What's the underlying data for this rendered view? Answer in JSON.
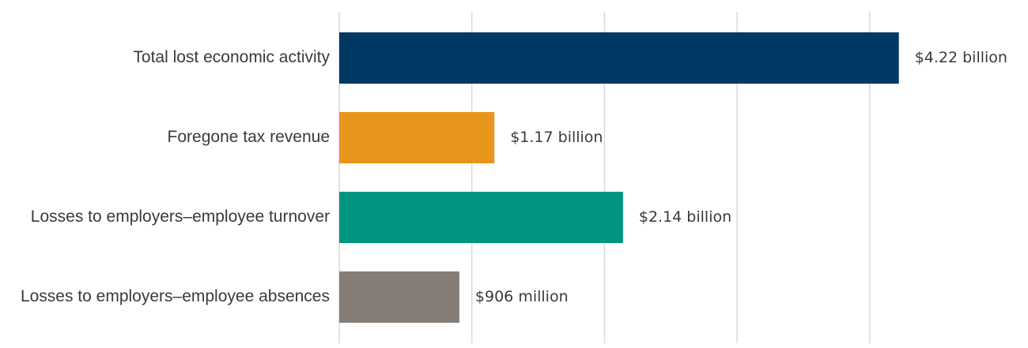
{
  "chart_data": {
    "type": "bar",
    "orientation": "horizontal",
    "title": "",
    "xlabel": "",
    "ylabel": "",
    "categories": [
      "Total lost economic activity",
      "Foregone tax revenue",
      "Losses to employers–employee turnover",
      "Losses to employers–employee absences"
    ],
    "values": [
      4.22,
      1.17,
      2.14,
      0.906
    ],
    "units": "billion USD",
    "data_labels": [
      "$4.22 billion",
      "$1.17 billion",
      "$2.14 billion",
      "$906 million"
    ],
    "colors": [
      "#023864",
      "#e8961b",
      "#009580",
      "#877d77"
    ],
    "xlim": [
      0,
      5
    ],
    "gridlines": [
      0,
      1,
      2,
      3,
      4
    ],
    "grid": true,
    "legend": "none"
  }
}
